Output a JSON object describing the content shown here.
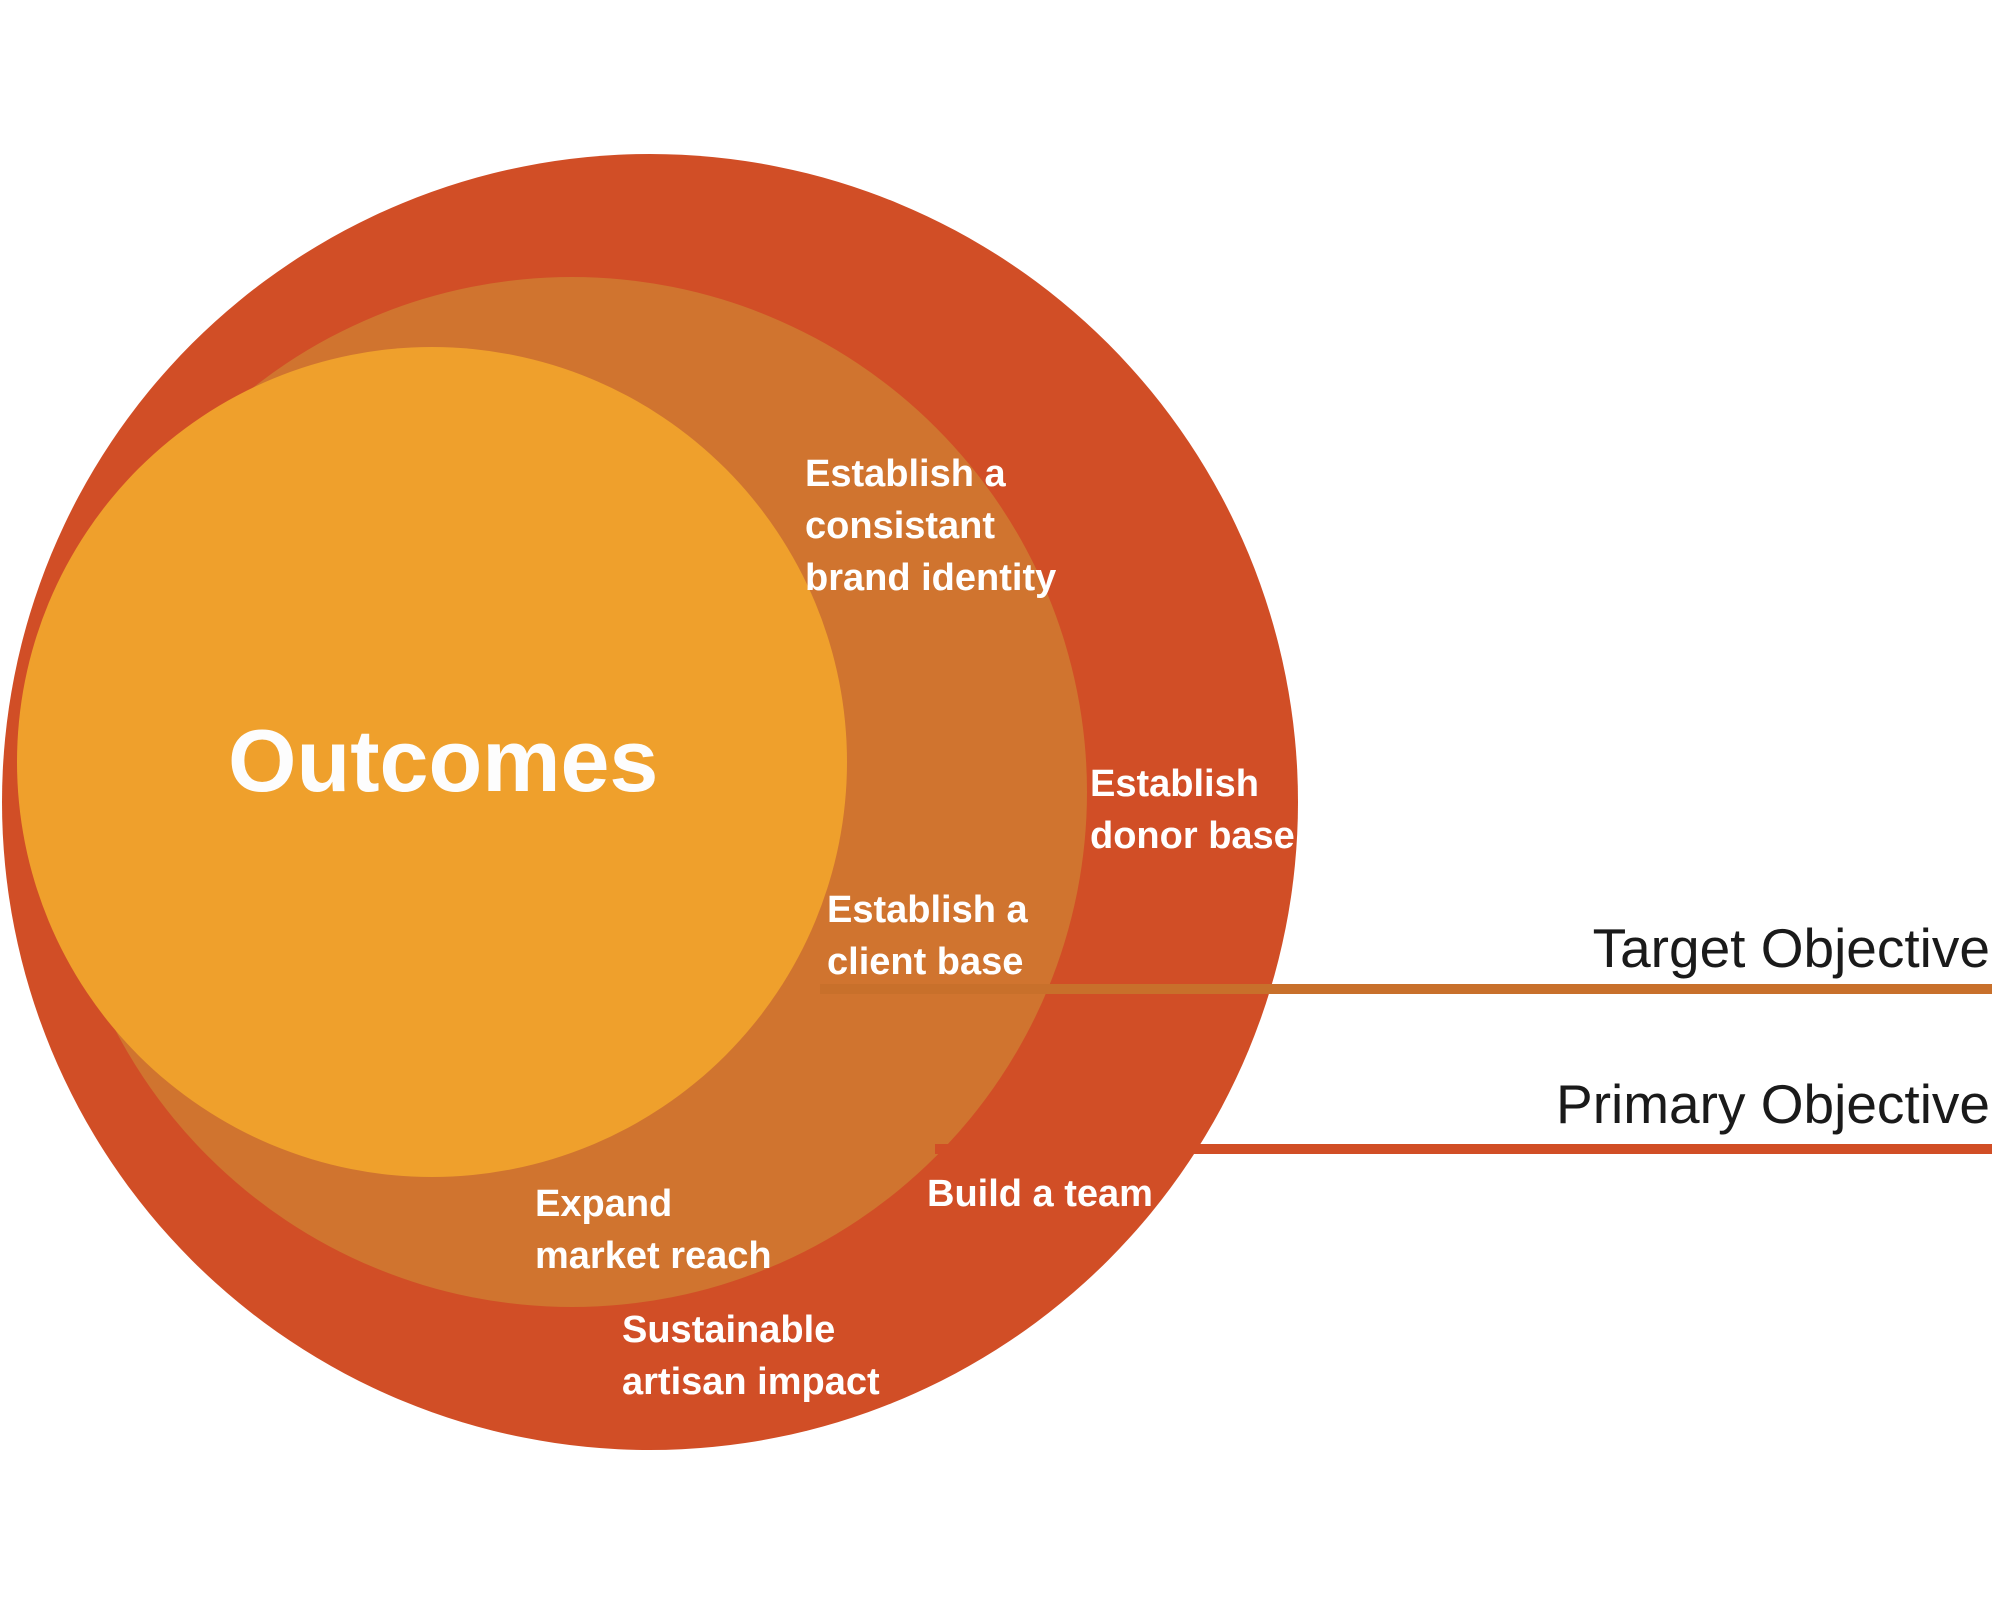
{
  "diagram": {
    "center_label": "Outcomes",
    "colors": {
      "outer_circle": "#D14E26",
      "middle_circle": "#D0742F",
      "inner_circle": "#EFA02C",
      "target_line": "#C8702B",
      "primary_line": "#D14E26",
      "legend_text": "#1A1A1A",
      "annotation_text": "#FFFFFF"
    },
    "annotations": {
      "brand_identity": {
        "lines": [
          "Establish a",
          "consistant",
          "brand identity"
        ]
      },
      "donor_base": {
        "lines": [
          "Establish",
          "donor base"
        ]
      },
      "client_base": {
        "lines": [
          "Establish a",
          "client base"
        ]
      },
      "market_reach": {
        "lines": [
          "Expand",
          "market reach"
        ]
      },
      "build_team": {
        "lines": [
          "Build a team"
        ]
      },
      "artisan_impact": {
        "lines": [
          "Sustainable",
          "artisan impact"
        ]
      }
    },
    "legend": {
      "target": "Target Objective",
      "primary": "Primary Objective"
    }
  }
}
